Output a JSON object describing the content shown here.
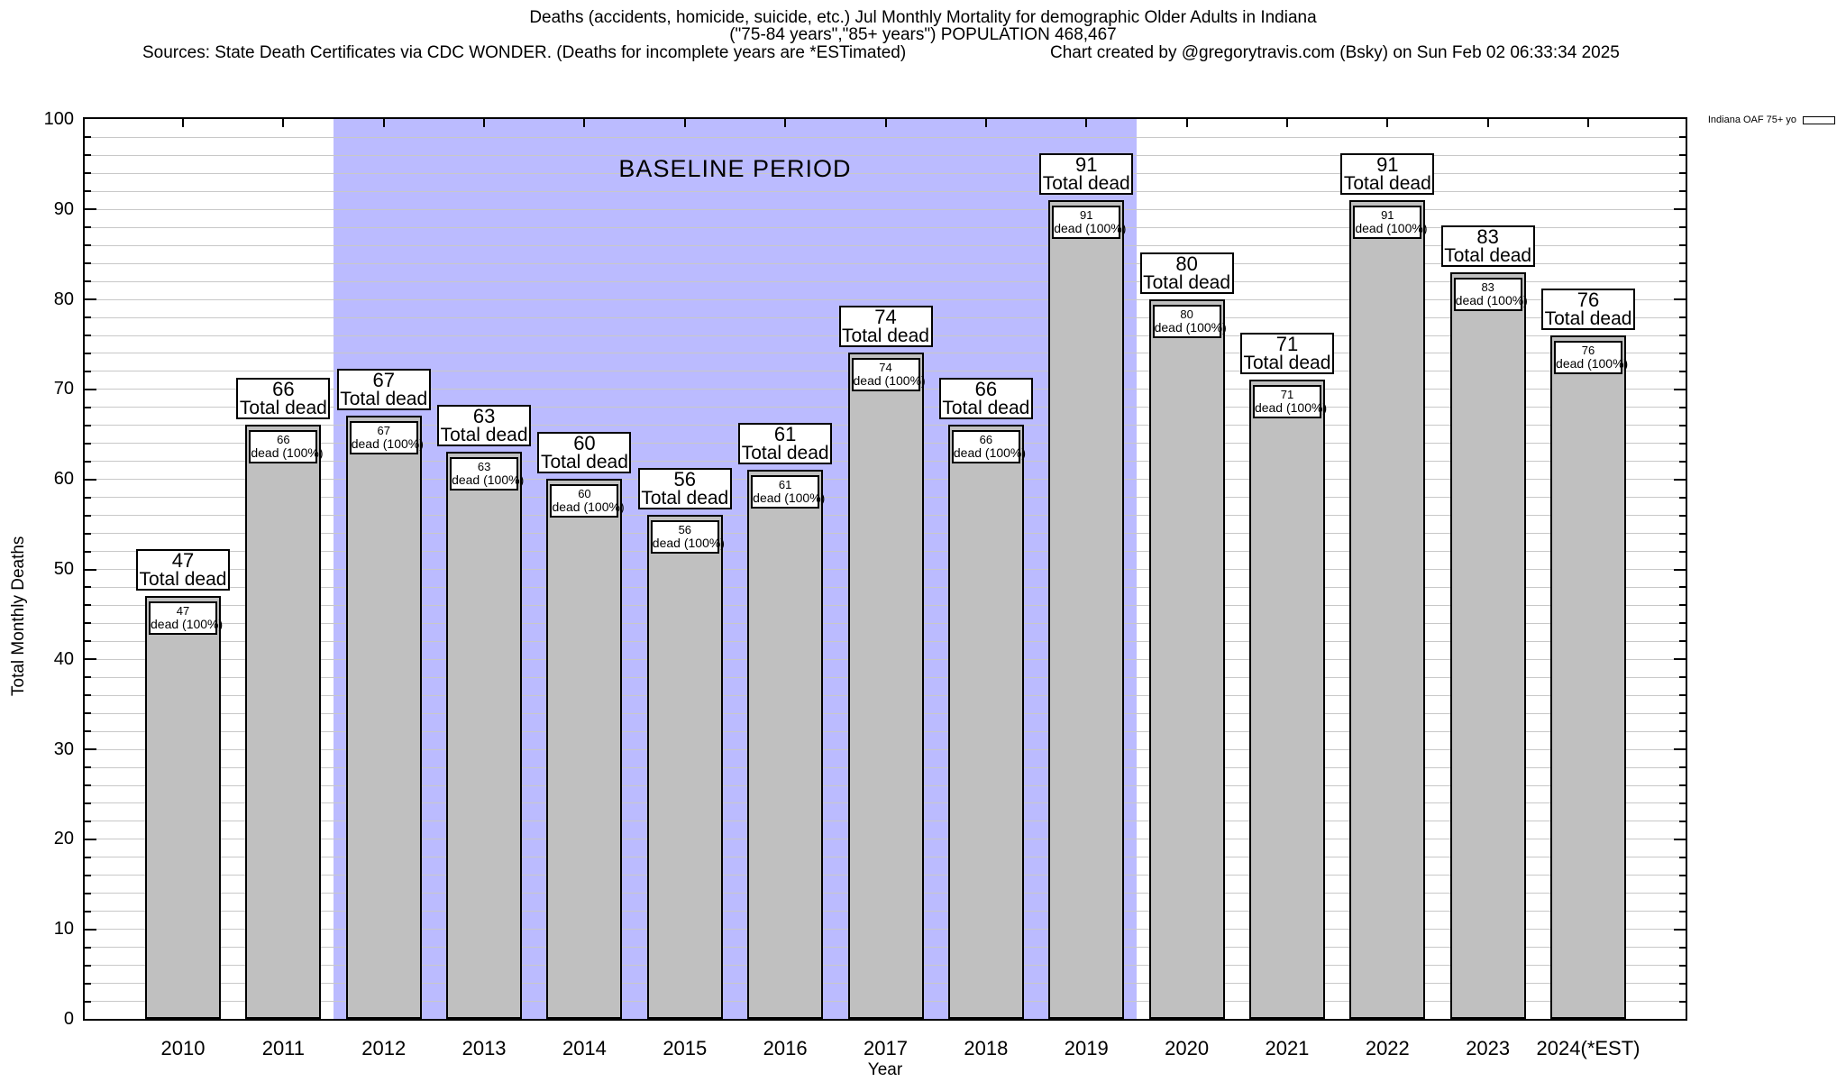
{
  "header": {
    "title_line1": "Deaths (accidents, homicide, suicide, etc.) Jul Monthly Mortality for demographic Older Adults in Indiana",
    "title_line2": "(\"75-84 years\",\"85+ years\") POPULATION 468,467",
    "sources": "Sources: State Death Certificates via CDC WONDER. (Deaths for incomplete years are *ESTimated)",
    "credit": "Chart created by @gregorytravis.com (Bsky) on Sun Feb 02 06:33:34 2025"
  },
  "legend": {
    "label": "Indiana OAF 75+ yo",
    "position": "top-right-outside"
  },
  "chart_data": {
    "type": "bar",
    "title": "Deaths (accidents, homicide, suicide, etc.) Jul Monthly Mortality for demographic Older Adults in Indiana (\"75-84 years\",\"85+ years\") POPULATION 468,467",
    "xlabel": "Year",
    "ylabel": "Total Monthly Deaths",
    "ylim": [
      0,
      100
    ],
    "ytick_interval": 10,
    "grid_interval": 2,
    "grid": true,
    "categories": [
      "2010",
      "2011",
      "2012",
      "2013",
      "2014",
      "2015",
      "2016",
      "2017",
      "2018",
      "2019",
      "2020",
      "2021",
      "2022",
      "2023",
      "2024(*EST)"
    ],
    "values": [
      47,
      66,
      67,
      63,
      60,
      56,
      61,
      74,
      66,
      91,
      80,
      71,
      91,
      83,
      76
    ],
    "series_name": "Indiana OAF 75+ yo",
    "bar_top_label_suffix": "Total dead",
    "bar_inner_label_suffix": "dead (100%)",
    "baseline_region": {
      "label": "BASELINE PERIOD",
      "from_category": "2012",
      "to_category": "2019",
      "start_index": 2,
      "end_index": 9
    },
    "colors": {
      "bar_fill": "#c0c0c0",
      "baseline_fill": "#bbbbff",
      "grid_line": "#c8c8c8",
      "box_bg": "#ffffff",
      "axis": "#000000"
    }
  }
}
